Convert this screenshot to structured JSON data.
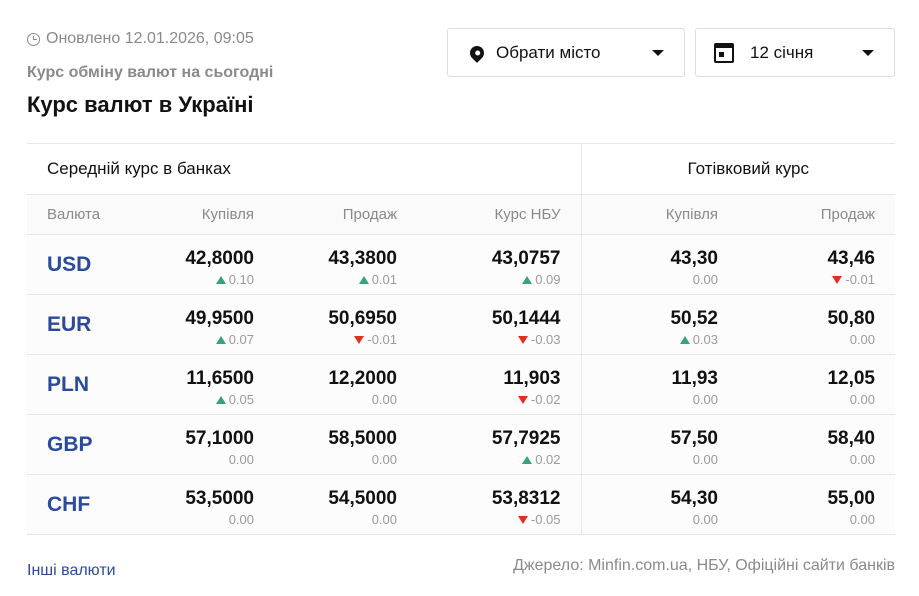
{
  "updated": "Оновлено 12.01.2026, 09:05",
  "subtitle": "Курс обміну валют на сьогодні",
  "title": "Курс валют в Україні",
  "city_select": "Обрати місто",
  "date_select": "12 січня",
  "groups": {
    "banks": "Середній курс в банках",
    "cash": "Готівковий курс"
  },
  "columns": [
    "Валюта",
    "Купівля",
    "Продаж",
    "Курс НБУ",
    "Купівля",
    "Продаж"
  ],
  "rows": [
    {
      "code": "USD",
      "cells": [
        {
          "v": "42,8000",
          "d": "0.10",
          "t": "up"
        },
        {
          "v": "43,3800",
          "d": "0.01",
          "t": "up"
        },
        {
          "v": "43,0757",
          "d": "0.09",
          "t": "up"
        },
        {
          "v": "43,30",
          "d": "0.00",
          "t": ""
        },
        {
          "v": "43,46",
          "d": "-0.01",
          "t": "dn"
        }
      ]
    },
    {
      "code": "EUR",
      "cells": [
        {
          "v": "49,9500",
          "d": "0.07",
          "t": "up"
        },
        {
          "v": "50,6950",
          "d": "-0.01",
          "t": "dn"
        },
        {
          "v": "50,1444",
          "d": "-0.03",
          "t": "dn"
        },
        {
          "v": "50,52",
          "d": "0.03",
          "t": "up"
        },
        {
          "v": "50,80",
          "d": "0.00",
          "t": ""
        }
      ]
    },
    {
      "code": "PLN",
      "cells": [
        {
          "v": "11,6500",
          "d": "0.05",
          "t": "up"
        },
        {
          "v": "12,2000",
          "d": "0.00",
          "t": ""
        },
        {
          "v": "11,903",
          "d": "-0.02",
          "t": "dn"
        },
        {
          "v": "11,93",
          "d": "0.00",
          "t": ""
        },
        {
          "v": "12,05",
          "d": "0.00",
          "t": ""
        }
      ]
    },
    {
      "code": "GBP",
      "cells": [
        {
          "v": "57,1000",
          "d": "0.00",
          "t": ""
        },
        {
          "v": "58,5000",
          "d": "0.00",
          "t": ""
        },
        {
          "v": "57,7925",
          "d": "0.02",
          "t": "up"
        },
        {
          "v": "57,50",
          "d": "0.00",
          "t": ""
        },
        {
          "v": "58,40",
          "d": "0.00",
          "t": ""
        }
      ]
    },
    {
      "code": "CHF",
      "cells": [
        {
          "v": "53,5000",
          "d": "0.00",
          "t": ""
        },
        {
          "v": "54,5000",
          "d": "0.00",
          "t": ""
        },
        {
          "v": "53,8312",
          "d": "-0.05",
          "t": "dn"
        },
        {
          "v": "54,30",
          "d": "0.00",
          "t": ""
        },
        {
          "v": "55,00",
          "d": "0.00",
          "t": ""
        }
      ]
    }
  ],
  "other_link": "Інші валюти",
  "source": "Джерело: Minfin.com.ua, НБУ, Офіційні сайти банків"
}
